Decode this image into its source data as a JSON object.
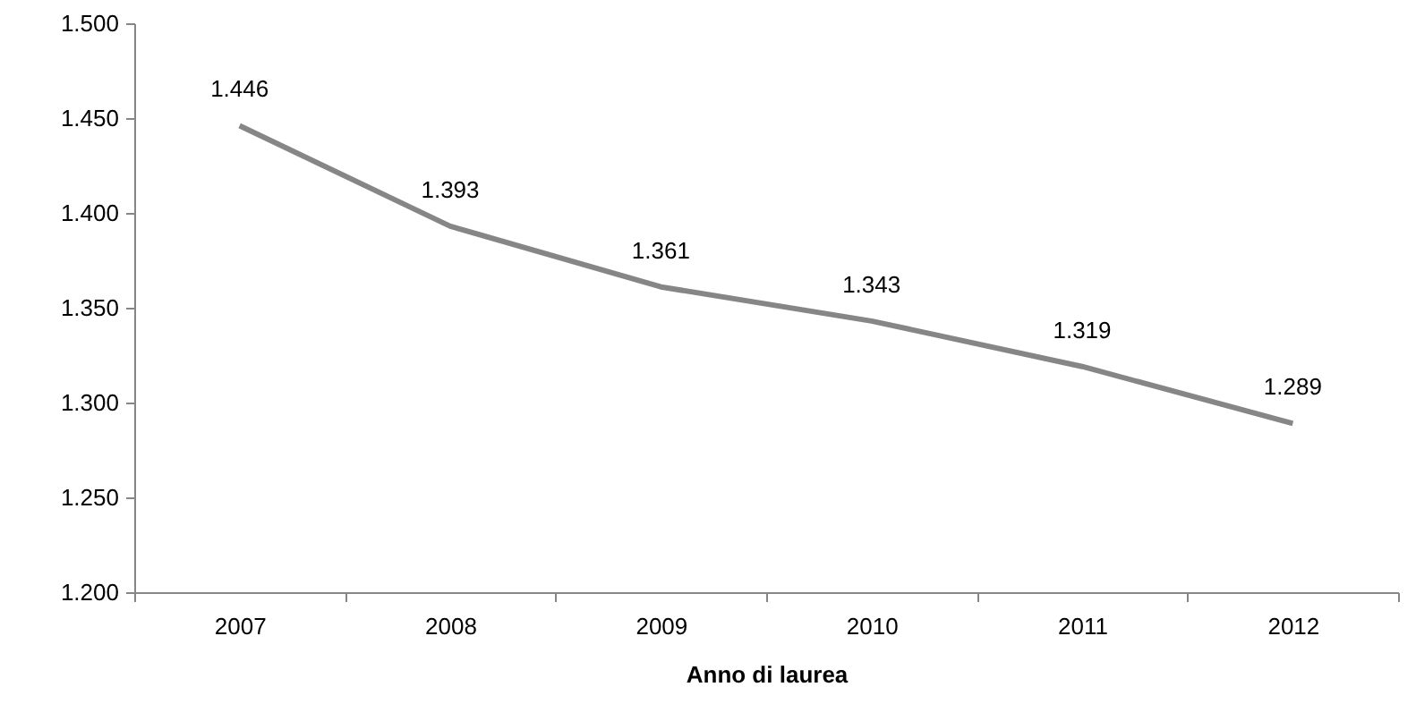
{
  "chart_data": {
    "type": "line",
    "xlabel": "Anno di laurea",
    "categories": [
      "2007",
      "2008",
      "2009",
      "2010",
      "2011",
      "2012"
    ],
    "series": [
      {
        "color": "#868686",
        "values": [
          1446,
          1393,
          1361,
          1343,
          1319,
          1289
        ],
        "value_labels": [
          "1.446",
          "1.393",
          "1.361",
          "1.343",
          "1.319",
          "1.289"
        ]
      }
    ],
    "ylim": [
      1200,
      1500
    ],
    "yticks": [
      {
        "value": 1200,
        "label": "1.200"
      },
      {
        "value": 1250,
        "label": "1.250"
      },
      {
        "value": 1300,
        "label": "1.300"
      },
      {
        "value": 1350,
        "label": "1.350"
      },
      {
        "value": 1400,
        "label": "1.400"
      },
      {
        "value": 1450,
        "label": "1.450"
      },
      {
        "value": 1500,
        "label": "1.500"
      }
    ]
  }
}
